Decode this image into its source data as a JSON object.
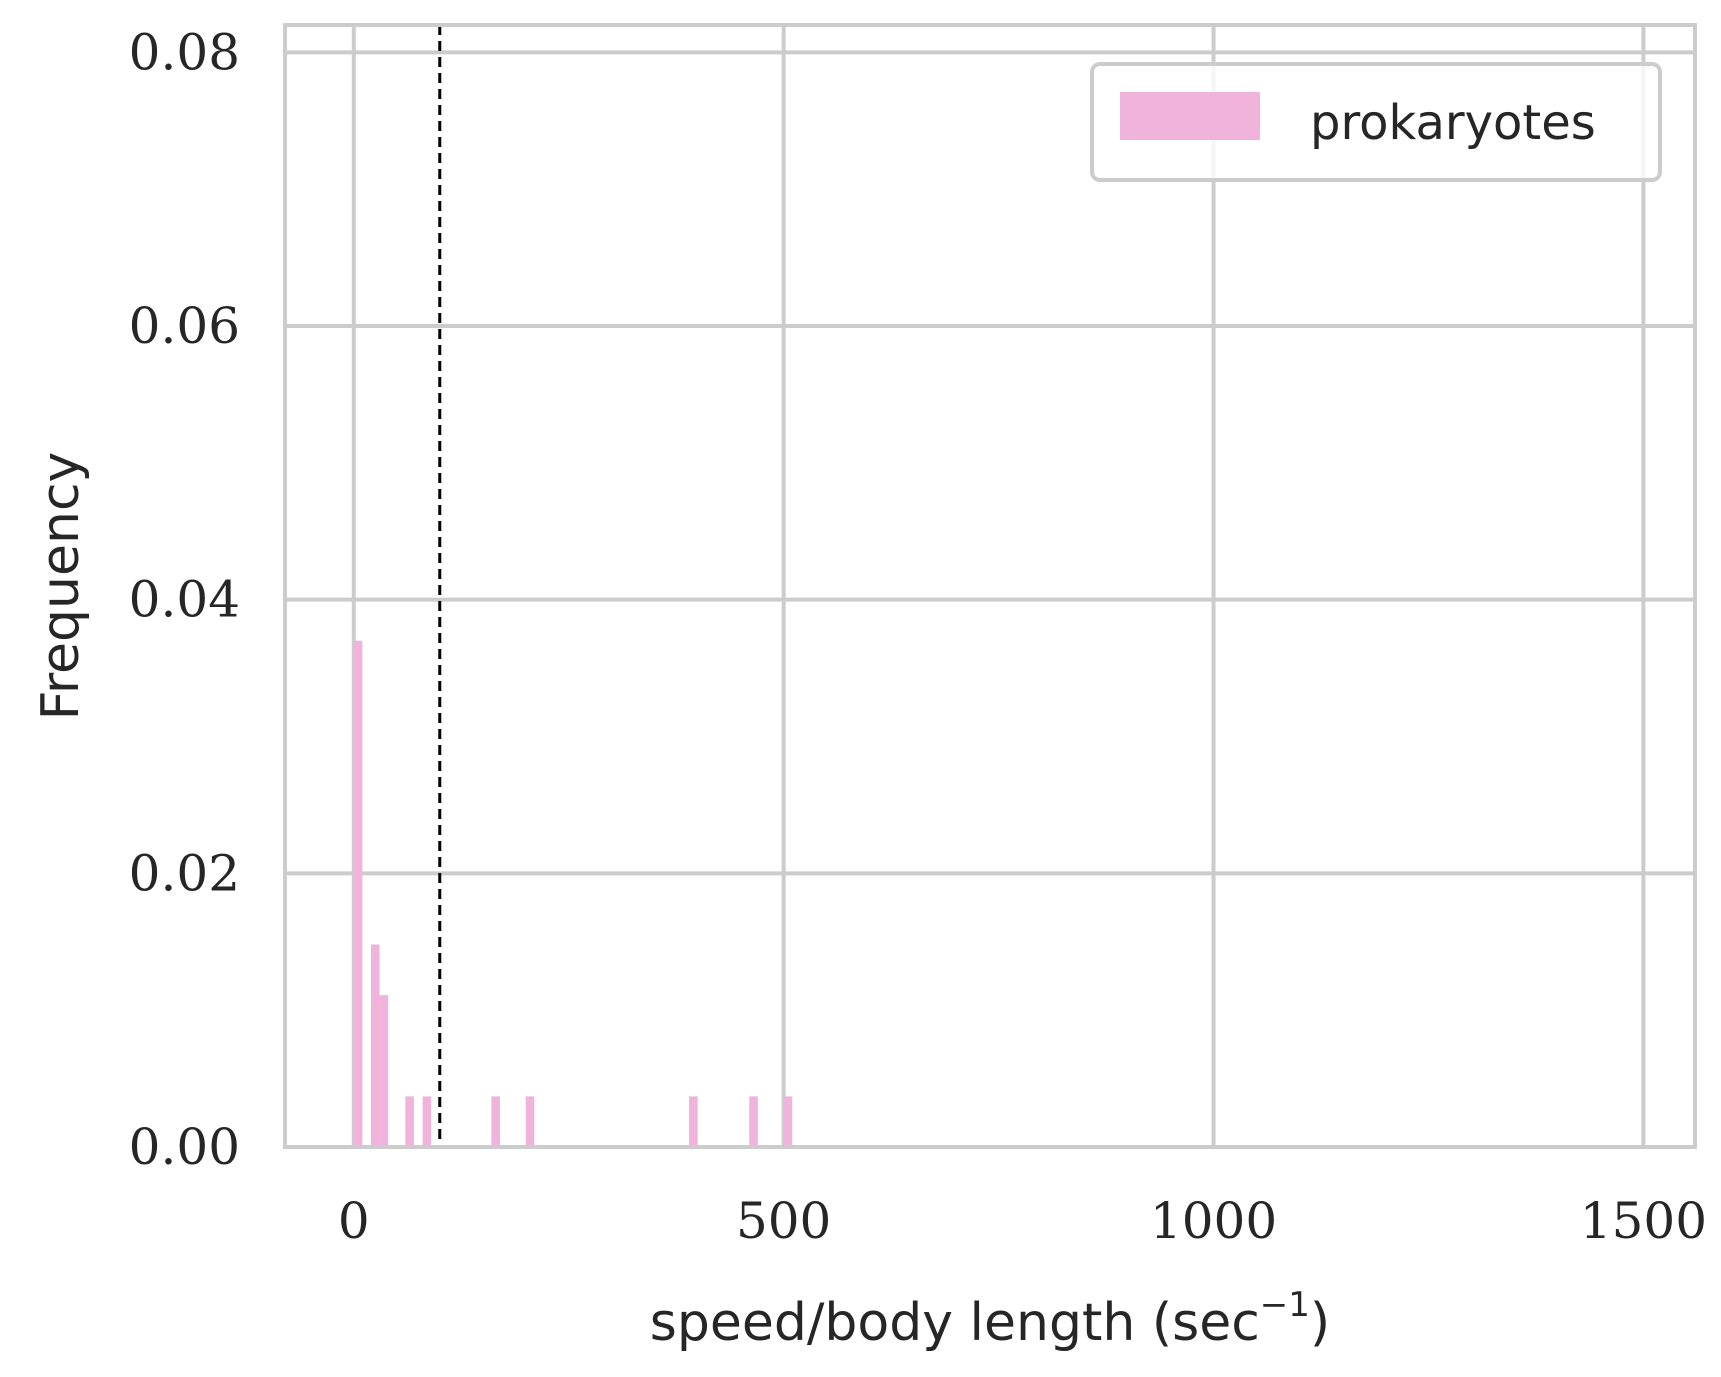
{
  "chart_data": {
    "type": "bar",
    "xlabel": "speed/body length (sec",
    "xlabel_exponent": "−1",
    "xlabel_close": ")",
    "ylabel": "Frequency",
    "xlim": [
      -80,
      1560
    ],
    "ylim": [
      0,
      0.082
    ],
    "xticks": [
      0,
      500,
      1000,
      1500
    ],
    "xtick_labels": [
      "0",
      "500",
      "1000",
      "1500"
    ],
    "yticks": [
      0.0,
      0.02,
      0.04,
      0.06,
      0.08
    ],
    "ytick_labels": [
      "0.00",
      "0.02",
      "0.04",
      "0.06",
      "0.08"
    ],
    "grid": true,
    "legend_position": "top-right",
    "bar_color": "#f0b4dc",
    "vline": {
      "x": 100,
      "style": "dashed",
      "color": "#000000"
    },
    "series": [
      {
        "name": "prokaryotes",
        "bin_width": 10,
        "bins": [
          {
            "x": 0,
            "value": 0.037
          },
          {
            "x": 20,
            "value": 0.0148
          },
          {
            "x": 30,
            "value": 0.0111
          },
          {
            "x": 60,
            "value": 0.0037
          },
          {
            "x": 80,
            "value": 0.0037
          },
          {
            "x": 160,
            "value": 0.0037
          },
          {
            "x": 200,
            "value": 0.0037
          },
          {
            "x": 390,
            "value": 0.0037
          },
          {
            "x": 460,
            "value": 0.0037
          },
          {
            "x": 500,
            "value": 0.0037
          }
        ]
      }
    ]
  }
}
